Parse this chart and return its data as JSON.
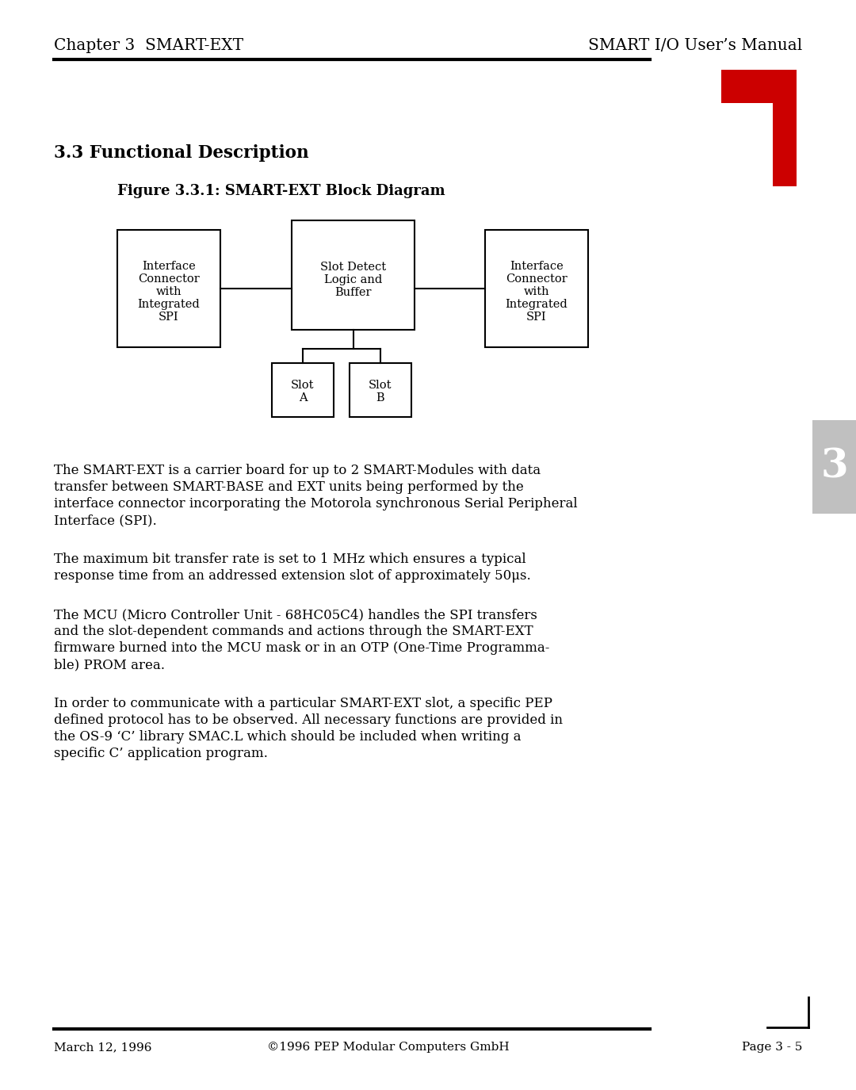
{
  "header_left": "Chapter 3  SMART-EXT",
  "header_right": "SMART I/O User’s Manual",
  "section_title": "3.3 Functional Description",
  "figure_title": "Figure 3.3.1: SMART-EXT Block Diagram",
  "footer_left": "March 12, 1996",
  "footer_center": "©1996 PEP Modular Computers GmbH",
  "footer_right": "Page 3 - 5",
  "box_color": "#000000",
  "bg_color": "#ffffff",
  "red_color": "#cc0000",
  "text_color": "#000000",
  "paragraphs": [
    "The SMART-EXT is a carrier board for up to 2 SMART-Modules with data\ntransfer between SMART-BASE and EXT units being performed by the\ninterface connector incorporating the Motorola synchronous Serial Peripheral\nInterface (SPI).",
    "The maximum bit transfer rate is set to 1 MHz which ensures a typical\nresponse time from an addressed extension slot of approximately 50μs.",
    "The MCU (Micro Controller Unit - 68HC05C4) handles the SPI transfers\nand the slot-dependent commands and actions through the SMART-EXT\nfirmware burned into the MCU mask or in an OTP (One-Time Programma-\nble) PROM area.",
    "In order to communicate with a particular SMART-EXT slot, a specific PEP\ndefined protocol has to be observed. All necessary functions are provided in\nthe OS-9 ‘C’ library SMAC.L which should be included when writing a\nspecific C’ application program."
  ]
}
